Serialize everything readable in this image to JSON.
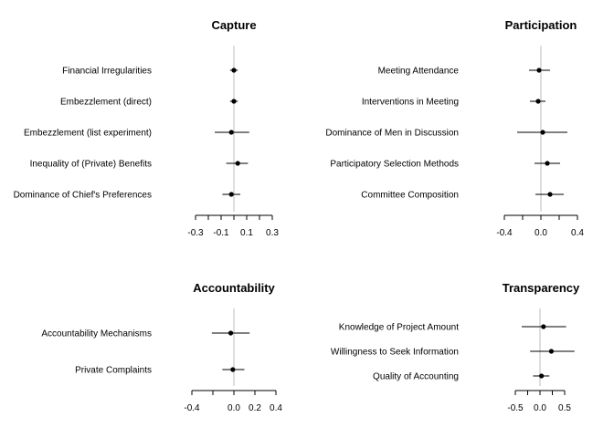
{
  "chart_data": [
    {
      "type": "scatter",
      "title": "Capture",
      "xlim": [
        -0.3,
        0.3
      ],
      "xticks": [
        -0.3,
        -0.2,
        -0.1,
        0.0,
        0.1,
        0.2,
        0.3
      ],
      "xtick_labels": [
        "-0.3",
        "",
        "-0.1",
        "",
        "0.1",
        "",
        "0.3"
      ],
      "reference_line": 0,
      "rows": [
        {
          "label": "Financial Irregularities",
          "estimate": 0.0,
          "lo": -0.03,
          "hi": 0.03
        },
        {
          "label": "Embezzlement (direct)",
          "estimate": 0.0,
          "lo": -0.03,
          "hi": 0.03
        },
        {
          "label": "Embezzlement (list experiment)",
          "estimate": -0.02,
          "lo": -0.15,
          "hi": 0.12
        },
        {
          "label": "Inequality of (Private) Benefits",
          "estimate": 0.03,
          "lo": -0.06,
          "hi": 0.11
        },
        {
          "label": "Dominance of Chief's Preferences",
          "estimate": -0.02,
          "lo": -0.09,
          "hi": 0.05
        }
      ]
    },
    {
      "type": "scatter",
      "title": "Participation",
      "xlim": [
        -0.4,
        0.4
      ],
      "xticks": [
        -0.4,
        -0.2,
        0.0,
        0.2,
        0.4
      ],
      "xtick_labels": [
        "-0.4",
        "",
        "0.0",
        "",
        "0.4"
      ],
      "reference_line": 0,
      "rows": [
        {
          "label": "Meeting Attendance",
          "estimate": -0.02,
          "lo": -0.13,
          "hi": 0.1
        },
        {
          "label": "Interventions in Meeting",
          "estimate": -0.03,
          "lo": -0.12,
          "hi": 0.05
        },
        {
          "label": "Dominance of Men in Discussion",
          "estimate": 0.02,
          "lo": -0.26,
          "hi": 0.29
        },
        {
          "label": "Participatory Selection Methods",
          "estimate": 0.07,
          "lo": -0.07,
          "hi": 0.21
        },
        {
          "label": "Committee Composition",
          "estimate": 0.1,
          "lo": -0.06,
          "hi": 0.25
        }
      ]
    },
    {
      "type": "scatter",
      "title": "Accountability",
      "xlim": [
        -0.4,
        0.4
      ],
      "xticks": [
        -0.4,
        -0.2,
        0.0,
        0.2,
        0.4
      ],
      "xtick_labels": [
        "-0.4",
        "",
        "0.0",
        "0.2",
        "0.4"
      ],
      "reference_line": 0,
      "rows": [
        {
          "label": "Accountability Mechanisms",
          "estimate": -0.03,
          "lo": -0.21,
          "hi": 0.15
        },
        {
          "label": "Private Complaints",
          "estimate": -0.01,
          "lo": -0.11,
          "hi": 0.1
        }
      ]
    },
    {
      "type": "scatter",
      "title": "Transparency",
      "xlim": [
        -0.5,
        0.5
      ],
      "xticks": [
        -0.5,
        -0.25,
        0.0,
        0.25,
        0.5
      ],
      "xtick_labels": [
        "-0.5",
        "",
        "0.0",
        "",
        "0.5"
      ],
      "reference_line": 0,
      "rows": [
        {
          "label": "Knowledge of Project Amount",
          "estimate": 0.07,
          "lo": -0.37,
          "hi": 0.53
        },
        {
          "label": "Willingness to Seek Information",
          "estimate": 0.23,
          "lo": -0.2,
          "hi": 0.7
        },
        {
          "label": "Quality of Accounting",
          "estimate": 0.03,
          "lo": -0.14,
          "hi": 0.19
        }
      ]
    }
  ]
}
